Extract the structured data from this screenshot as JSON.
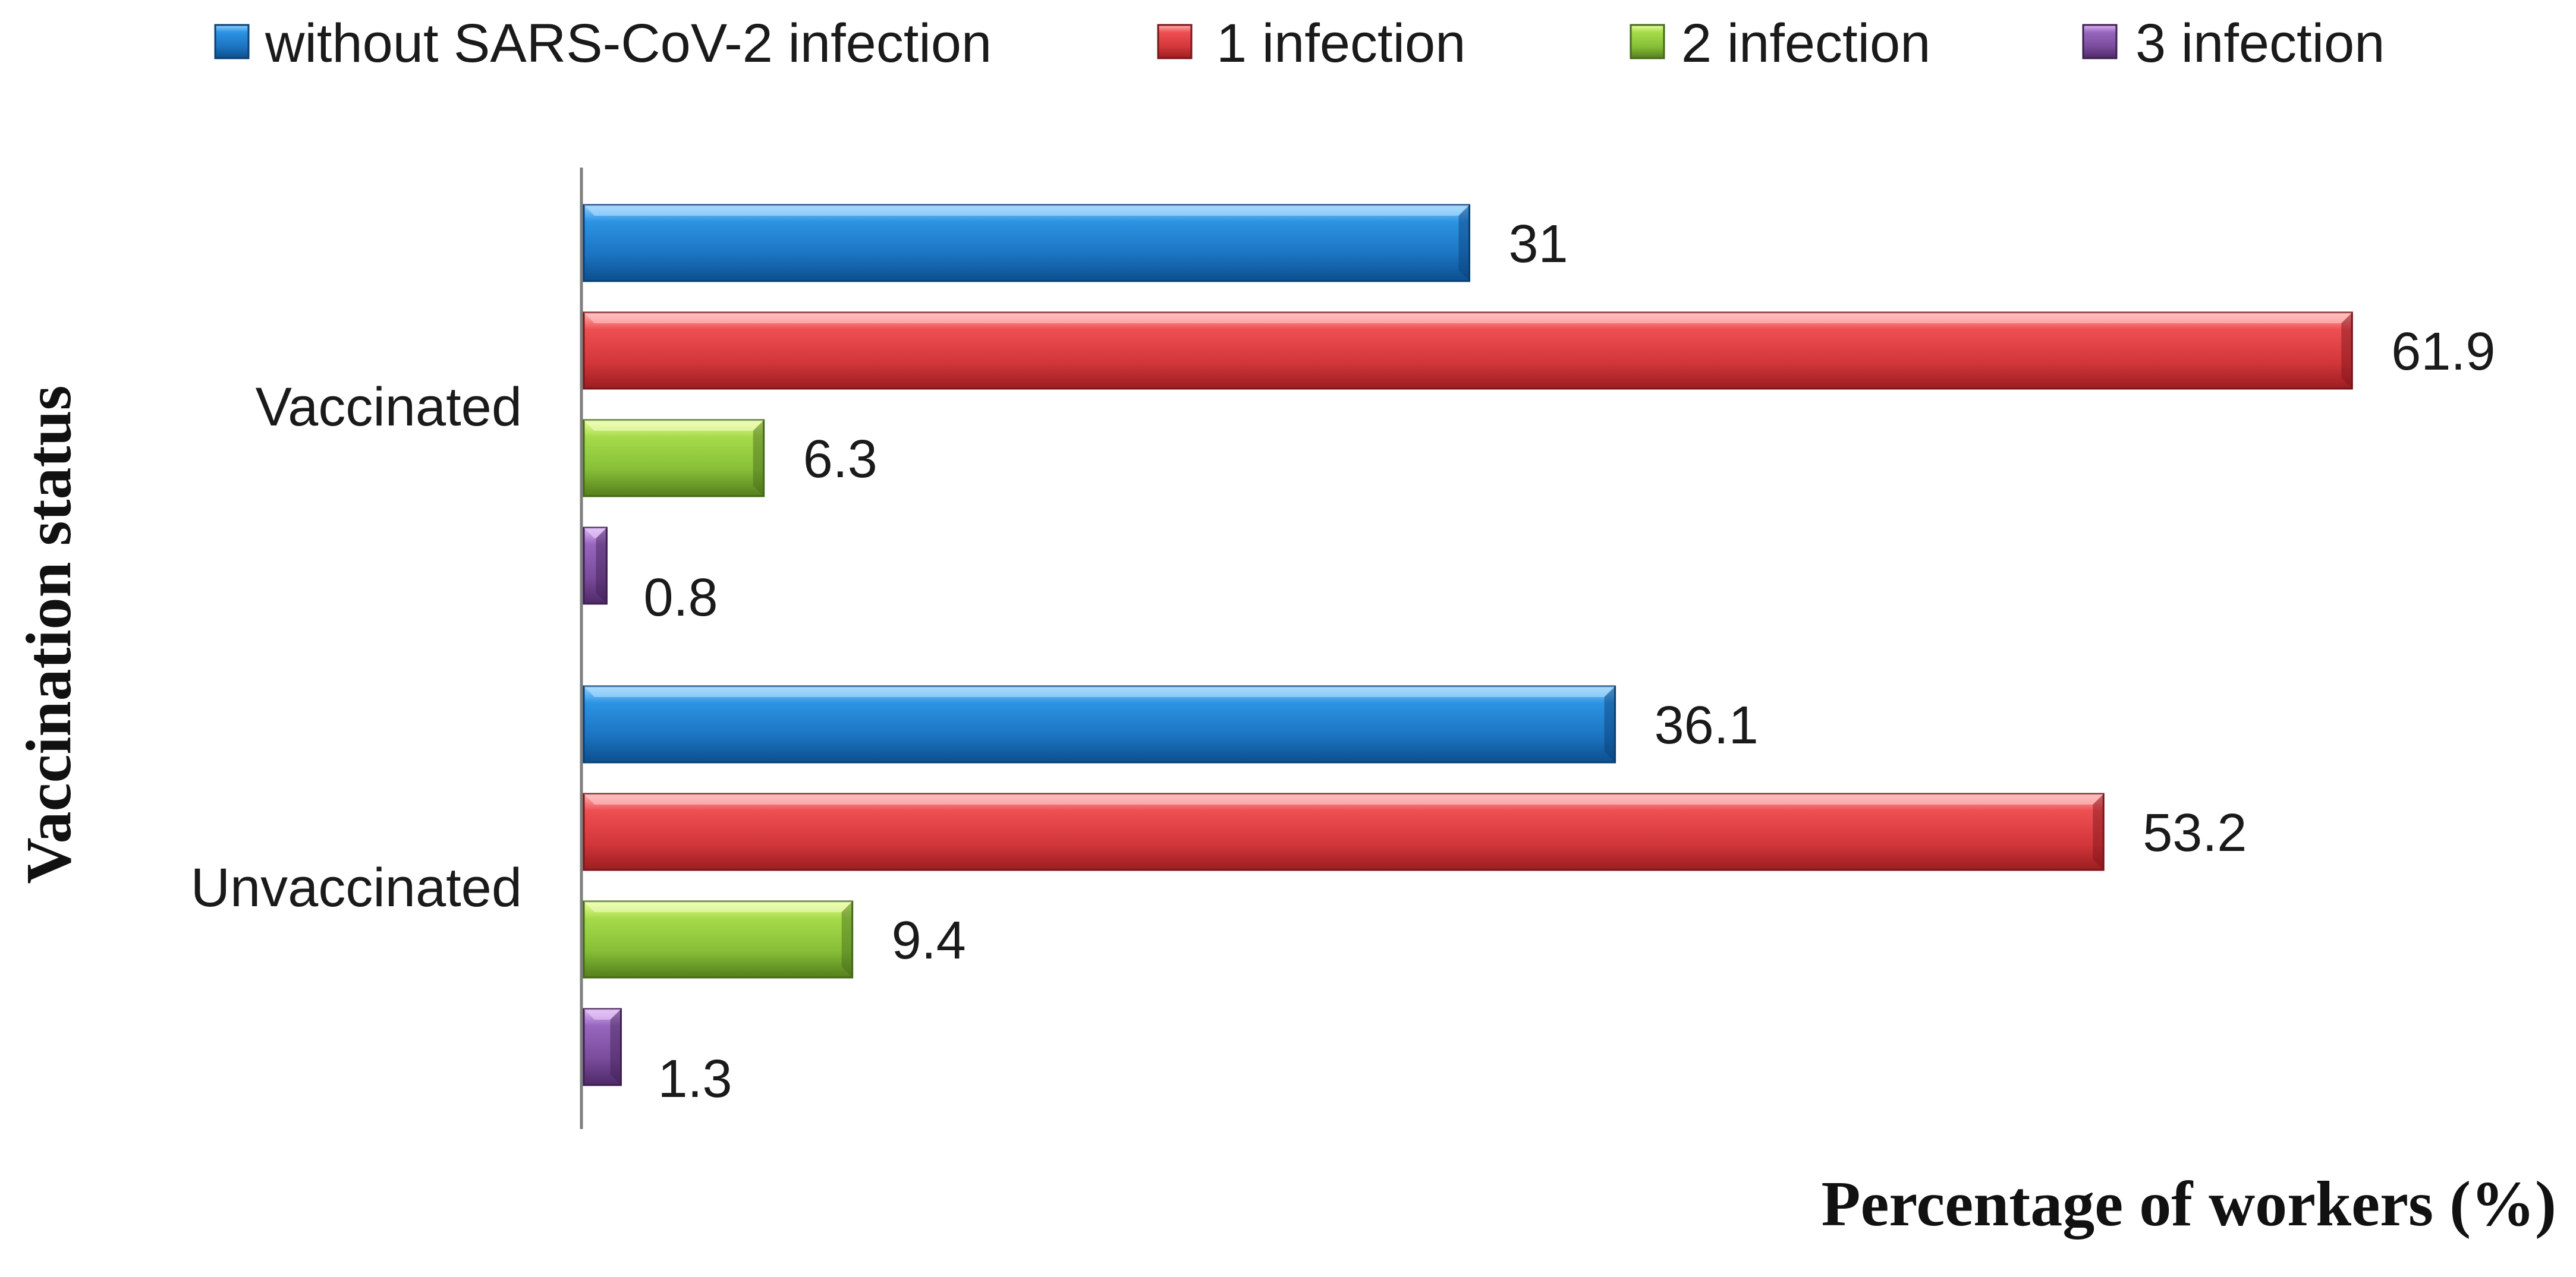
{
  "chart_data": {
    "type": "bar",
    "orientation": "horizontal",
    "title": "",
    "xlabel": "Percentage of workers (%)",
    "ylabel": "Vaccination status",
    "categories": [
      "Vaccinated",
      "Unvaccinated"
    ],
    "series": [
      {
        "name": "without SARS-CoV-2 infection",
        "color": "#1f7cc6",
        "values": [
          31,
          36.1
        ],
        "labels": [
          "31",
          "36.1"
        ]
      },
      {
        "name": "1 infection",
        "color": "#dc3a3e",
        "values": [
          61.9,
          53.2
        ],
        "labels": [
          "61.9",
          "53.2"
        ]
      },
      {
        "name": "2 infection",
        "color": "#8cc63e",
        "values": [
          6.3,
          9.4
        ],
        "labels": [
          "6.3",
          "9.4"
        ]
      },
      {
        "name": "3 infection",
        "color": "#7a4c9c",
        "values": [
          0.8,
          1.3
        ],
        "labels": [
          "0.8",
          "1.3"
        ]
      }
    ],
    "xlim": [
      0,
      62
    ],
    "grid": false,
    "legend_position": "top"
  }
}
